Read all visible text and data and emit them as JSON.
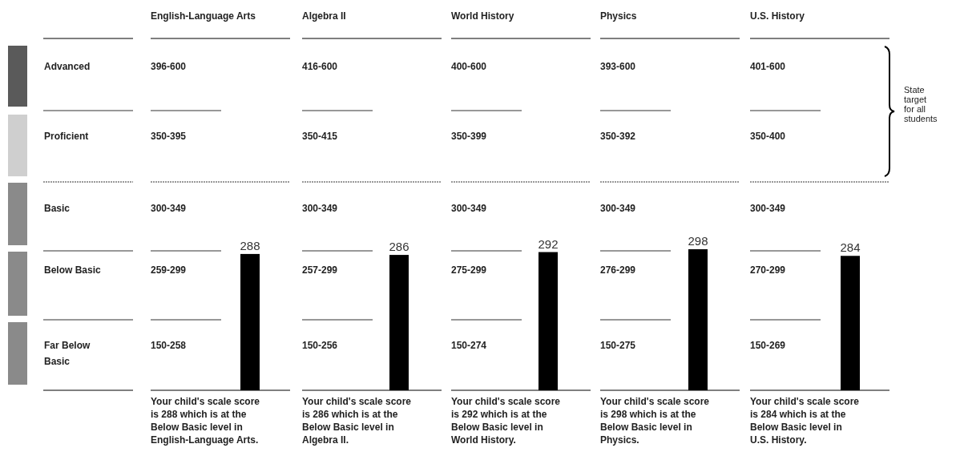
{
  "chart_data": {
    "type": "bar",
    "categories": [
      "English-Language Arts",
      "Algebra II",
      "World History",
      "Physics",
      "U.S. History"
    ],
    "values": [
      288,
      286,
      292,
      298,
      284
    ],
    "color": "#000000",
    "data_labels": true,
    "grid": true,
    "annotations": [
      "Advanced",
      "Proficient",
      "Basic",
      "Below Basic",
      "Far Below Basic",
      "396-600",
      "416-600",
      "400-600",
      "393-600",
      "401-600",
      "350-395",
      "350-415",
      "350-399",
      "350-392",
      "350-400",
      "300-349",
      "300-349",
      "300-349",
      "300-349",
      "300-349",
      "259-299",
      "257-299",
      "275-299",
      "276-299",
      "270-299",
      "150-258",
      "150-256",
      "150-274",
      "150-275",
      "150-269",
      "State target for all students",
      "Your child's scale score is 288 which is at the Below Basic level in English-Language Arts.",
      "Your child's scale score is 286 which is at the Below Basic level in Algebra II.",
      "Your child's scale score is 292 which is at the Below Basic level in World History.",
      "Your child's scale score is 298 which is at the Below Basic level in Physics.",
      "Your child's scale score is 284 which is at the Below Basic level in U.S. History."
    ]
  }
}
